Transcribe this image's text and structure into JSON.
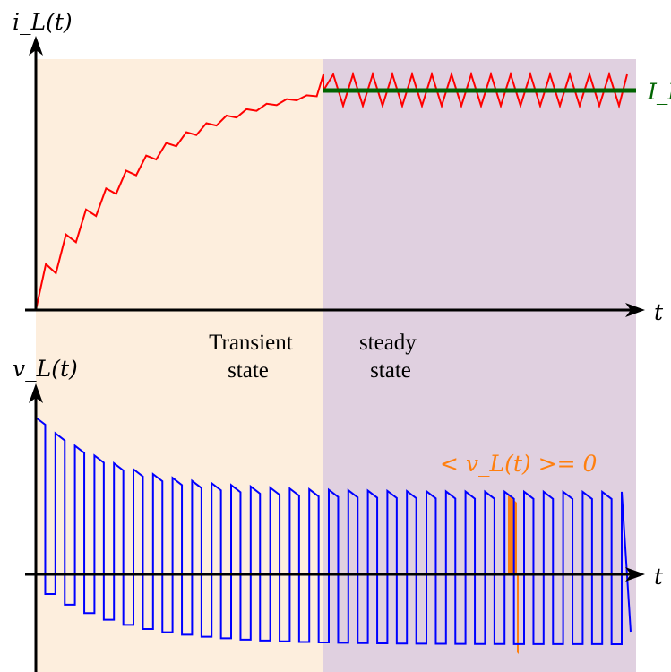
{
  "colors": {
    "transient_bg": "#fdeedd",
    "steady_bg": "#e0d0e0",
    "current_wave": "#ff0000",
    "average_line": "#006400",
    "voltage_wave": "#0000ff",
    "highlight": "#ff7f0e",
    "axis": "#000000"
  },
  "labels": {
    "top_y_axis": "i_L(t)",
    "top_x_axis": "t",
    "average_current": "I_L",
    "bottom_y_axis": "v_L(t)",
    "bottom_x_axis": "t",
    "transient_state": [
      "Transient",
      "state"
    ],
    "steady_state": [
      "steady",
      "state"
    ],
    "average_voltage_note": "< v_L(t) >= 0"
  },
  "icons": {
    "arrowheads": "arrow-head-icon"
  }
}
